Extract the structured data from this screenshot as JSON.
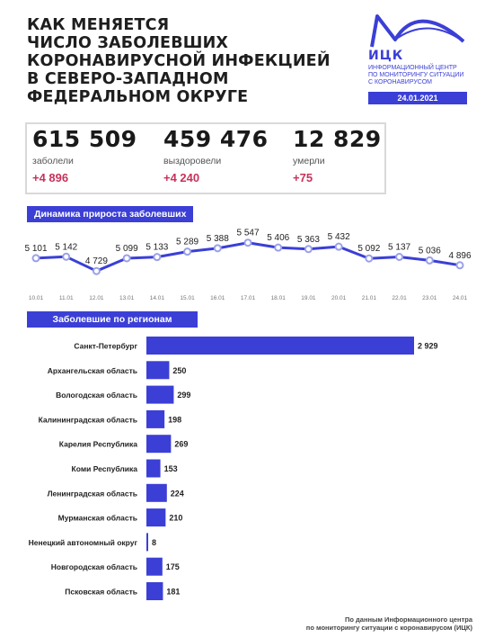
{
  "title_lines": [
    "КАК МЕНЯЕТСЯ",
    "ЧИСЛО ЗАБОЛЕВШИХ",
    "КОРОНАВИРУСНОЙ ИНФЕКЦИЕЙ",
    "В СЕВЕРО-ЗАПАДНОМ",
    "ФЕДЕРАЛЬНОМ ОКРУГЕ"
  ],
  "logo": {
    "abbr": "ИЦК",
    "text_lines": [
      "ИНФОРМАЦИОННЫЙ ЦЕНТР",
      "ПО МОНИТОРИНГУ СИТУАЦИИ",
      "С КОРОНАВИРУСОМ"
    ],
    "date": "24.01.2021",
    "accent": "#3b3fd6"
  },
  "stats": [
    {
      "value": "615 509",
      "label": "заболели",
      "delta": "+4 896"
    },
    {
      "value": "459 476",
      "label": "выздоровели",
      "delta": "+4 240"
    },
    {
      "value": "12 829",
      "label": "умерли",
      "delta": "+75"
    }
  ],
  "sections": {
    "dynamics": "Динамика прироста заболевших",
    "regions": "Заболевшие по регионам"
  },
  "chart_data": [
    {
      "type": "line",
      "title": "Динамика прироста заболевших",
      "x": [
        "10.01",
        "11.01",
        "12.01",
        "13.01",
        "14.01",
        "15.01",
        "16.01",
        "17.01",
        "18.01",
        "19.01",
        "20.01",
        "21.01",
        "22.01",
        "23.01",
        "24.01"
      ],
      "values": [
        5101,
        5142,
        4729,
        5099,
        5133,
        5289,
        5388,
        5547,
        5406,
        5363,
        5432,
        5092,
        5137,
        5036,
        4896
      ],
      "value_labels": [
        "5 101",
        "5 142",
        "4 729",
        "5 099",
        "5 133",
        "5 289",
        "5 388",
        "5 547",
        "5 406",
        "5 363",
        "5 432",
        "5 092",
        "5 137",
        "5 036",
        "4 896"
      ],
      "ylim": [
        4500,
        5800
      ],
      "grid": false,
      "color": "#3b3fd6"
    },
    {
      "type": "bar",
      "orientation": "horizontal",
      "title": "Заболевшие по регионам",
      "categories": [
        "Санкт-Петербург",
        "Архангельская область",
        "Вологодская область",
        "Калининградская область",
        "Карелия Республика",
        "Коми Республика",
        "Ленинградская область",
        "Мурманская область",
        "Ненецкий автономный округ",
        "Новгородская область",
        "Псковская область"
      ],
      "values": [
        2929,
        250,
        299,
        198,
        269,
        153,
        224,
        210,
        8,
        175,
        181
      ],
      "value_labels": [
        "2 929",
        "250",
        "299",
        "198",
        "269",
        "153",
        "224",
        "210",
        "8",
        "175",
        "181"
      ],
      "color": "#3b3fd6"
    }
  ],
  "footer_lines": [
    "По данным Информационного центра",
    "по мониторингу ситуации с коронавирусом (ИЦК)"
  ]
}
